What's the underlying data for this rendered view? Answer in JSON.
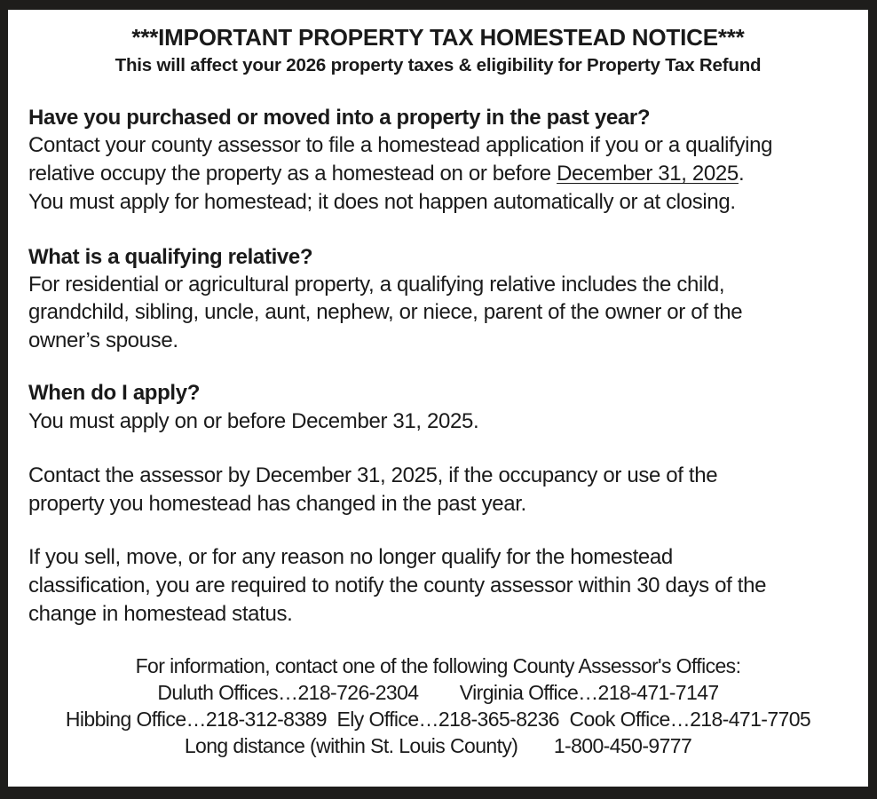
{
  "notice": {
    "title": "***IMPORTANT PROPERTY TAX HOMESTEAD NOTICE***",
    "subtitle": "This will affect your 2026 property taxes & eligibility for Property Tax Refund",
    "sections": [
      {
        "heading": "Have you purchased or moved into a property in the past year?",
        "lines": [
          "Contact your county assessor to file a homestead application if you or a qualifying",
          "relative occupy the property as a homestead on or before ",
          "You must apply for homestead; it does not happen automatically or at closing."
        ],
        "underlined_date": "December 31, 2025",
        "after_date": "."
      },
      {
        "heading": "What is a qualifying relative?",
        "lines": [
          "For residential or agricultural property, a qualifying relative includes the child,",
          "grandchild, sibling, uncle, aunt, nephew, or niece, parent of the owner or of the",
          "owner’s spouse."
        ]
      },
      {
        "heading": "When do I apply?",
        "lines": [
          "You must apply on or before December 31, 2025."
        ]
      }
    ],
    "paragraph_change": [
      "Contact the assessor by December 31, 2025, if the occupancy or use of the",
      "property you homestead has changed in the past year."
    ],
    "paragraph_sell": [
      "If you sell, move, or for any reason no longer qualify for the homestead",
      "classification, you are required to notify the county assessor within 30 days of the",
      "change in homestead status."
    ],
    "footer": [
      "For information, contact one of the following County Assessor's Offices:",
      "Duluth Offices…218-726-2304        Virginia Office…218-471-7147",
      "Hibbing Office…218-312-8389  Ely Office…218-365-8236  Cook Office…218-471-7705",
      "Long distance (within St. Louis County)       1-800-450-9777"
    ]
  }
}
